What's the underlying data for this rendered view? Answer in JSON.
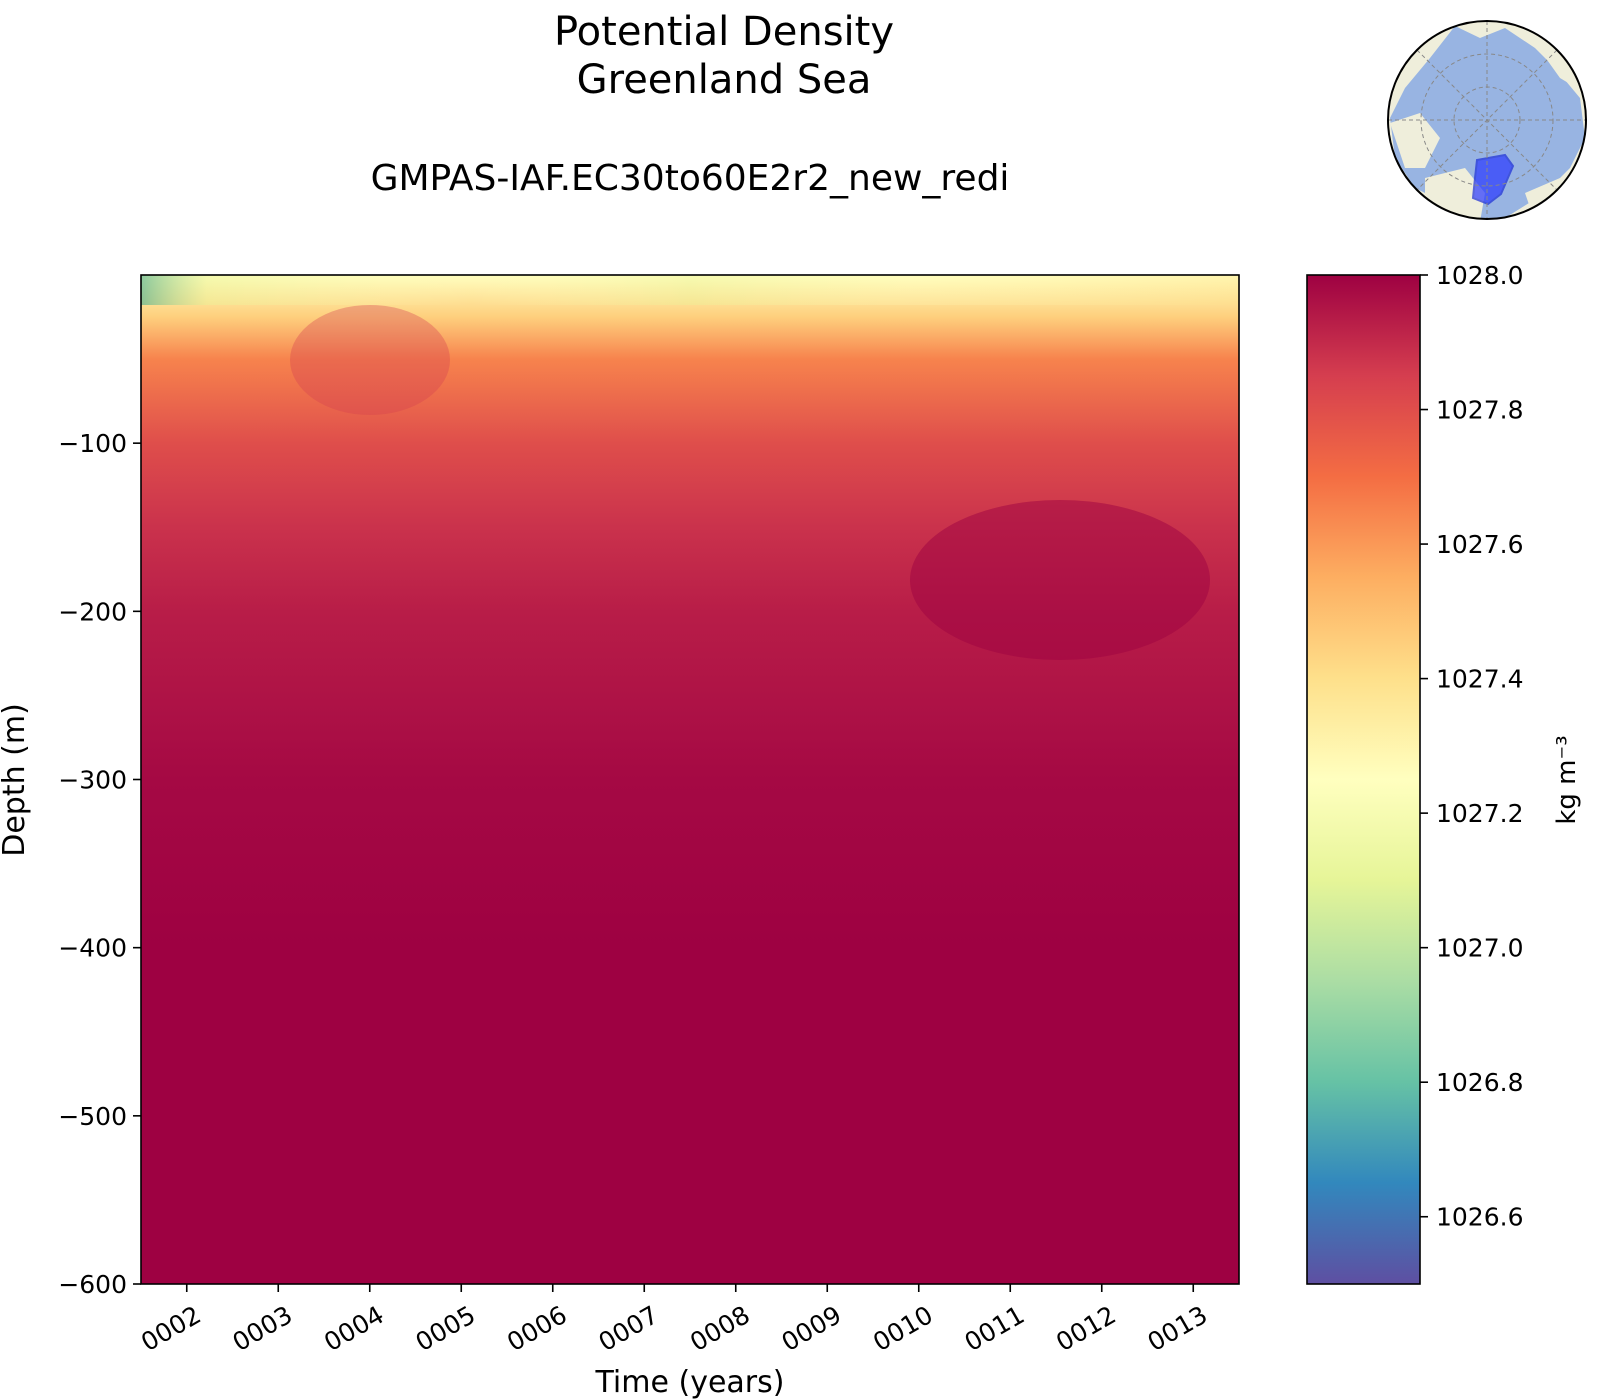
{
  "chart_data": {
    "type": "heatmap",
    "title": "Potential Density",
    "title_line2": "Greenland Sea",
    "subtitle": "GMPAS-IAF.EC30to60E2r2_new_redi",
    "xlabel": "Time (years)",
    "ylabel": "Depth (m)",
    "x_ticks": [
      "0002",
      "0003",
      "0004",
      "0005",
      "0006",
      "0007",
      "0008",
      "0009",
      "0010",
      "0011",
      "0012",
      "0013"
    ],
    "y_ticks": [
      -100,
      -200,
      -300,
      -400,
      -500,
      -600
    ],
    "xlim": [
      "0001.5",
      "0013.5"
    ],
    "ylim": [
      -600,
      0
    ],
    "colorbar": {
      "label": "kg m⁻³",
      "ticks": [
        "1026.6",
        "1026.8",
        "1027.0",
        "1027.2",
        "1027.4",
        "1027.6",
        "1027.8",
        "1028.0"
      ],
      "range": [
        1026.5,
        1028.0
      ],
      "colormap": "Spectral_r"
    },
    "depth_profile": [
      {
        "depth": 0,
        "value": 1027.25
      },
      {
        "depth": -25,
        "value": 1027.45
      },
      {
        "depth": -50,
        "value": 1027.65
      },
      {
        "depth": -100,
        "value": 1027.8
      },
      {
        "depth": -150,
        "value": 1027.88
      },
      {
        "depth": -200,
        "value": 1027.93
      },
      {
        "depth": -300,
        "value": 1027.98
      },
      {
        "depth": -400,
        "value": 1028.0
      },
      {
        "depth": -600,
        "value": 1028.0
      }
    ],
    "inset_map": "greenland-sea-region-map"
  }
}
